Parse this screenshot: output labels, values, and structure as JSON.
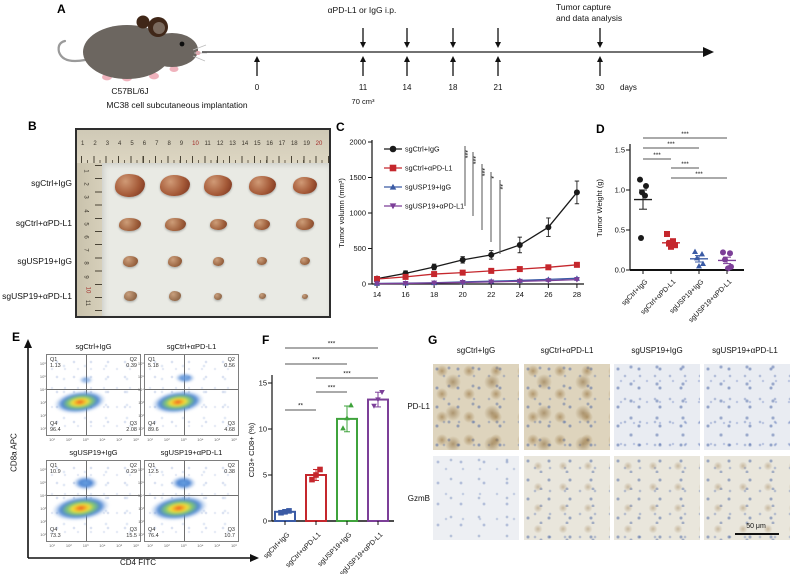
{
  "groups": [
    "sgCtrl+IgG",
    "sgCtrl+αPD-L1",
    "sgUSP19+IgG",
    "sgUSP19+αPD-L1"
  ],
  "colors": {
    "black": "#1a1a1a",
    "red": "#c5272d",
    "blue": "#3b5ba5",
    "purple": "#7c3f98",
    "green": "#3fa33c"
  },
  "panels": {
    "A": {
      "label": "A",
      "strain": "C57BL/6J",
      "implantation": "MC38 cell subcutaneous implantation",
      "treatment": "αPD-L1 or IgG i.p.",
      "capture_line1": "Tumor capture",
      "capture_line2": "and data analysis",
      "timeline_days": [
        "0",
        "11",
        "14",
        "18",
        "21",
        "30"
      ],
      "days_unit": "days",
      "volume_note": "70 cm³"
    },
    "B": {
      "label": "B",
      "row_labels": [
        "sgCtrl+IgG",
        "sgCtrl+αPD-L1",
        "sgUSP19+IgG",
        "sgUSP19+αPD-L1"
      ],
      "ruler_h_numbers": [
        "1",
        "2",
        "3",
        "4",
        "5",
        "6",
        "7",
        "8",
        "9",
        "10",
        "11",
        "12",
        "13",
        "14",
        "15",
        "16",
        "17",
        "18",
        "19",
        "20"
      ],
      "ruler_v_numbers": [
        "1",
        "2",
        "3",
        "4",
        "5",
        "6",
        "7",
        "8",
        "9",
        "10",
        "11"
      ]
    },
    "C": {
      "label": "C"
    },
    "D": {
      "label": "D"
    },
    "E": {
      "label": "E",
      "xlabel": "CD4 FITC",
      "ylabel": "CD8a APC",
      "axis_ticks": [
        "10¹",
        "10²",
        "10³",
        "10⁴",
        "10⁵",
        "10⁶"
      ],
      "quadrant_labels": [
        "Q1",
        "Q2",
        "Q3",
        "Q4"
      ],
      "plots": [
        {
          "title": "sgCtrl+IgG",
          "q1": "1.13",
          "q2": "0.39",
          "q3": "2.08",
          "q4": "96.4"
        },
        {
          "title": "sgCtrl+αPD-L1",
          "q1": "5.18",
          "q2": "0.56",
          "q3": "4.68",
          "q4": "89.6"
        },
        {
          "title": "sgUSP19+IgG",
          "q1": "10.9",
          "q2": "0.29",
          "q3": "15.5",
          "q4": "73.3"
        },
        {
          "title": "sgUSP19+αPD-L1",
          "q1": "12.5",
          "q2": "0.38",
          "q3": "10.7",
          "q4": "76.4"
        }
      ]
    },
    "F": {
      "label": "F"
    },
    "G": {
      "label": "G",
      "column_labels": [
        "sgCtrl+IgG",
        "sgCtrl+αPD-L1",
        "sgUSP19+IgG",
        "sgUSP19+αPD-L1"
      ],
      "row_labels": [
        "PD-L1",
        "GzmB"
      ],
      "scale_bar": "50 μm"
    }
  },
  "chart_data": [
    {
      "id": "C",
      "type": "line",
      "ylabel": "Tumor volumn (mm³)",
      "x": [
        14,
        16,
        18,
        20,
        22,
        24,
        26,
        28
      ],
      "ylim": [
        0,
        2000
      ],
      "yticks": [
        0,
        500,
        1000,
        1500,
        2000
      ],
      "series": [
        {
          "name": "sgCtrl+IgG",
          "color": "#1a1a1a",
          "marker": "circle",
          "values": [
            75,
            150,
            240,
            340,
            410,
            550,
            800,
            1290
          ],
          "errors": [
            25,
            35,
            40,
            45,
            60,
            110,
            130,
            160
          ]
        },
        {
          "name": "sgCtrl+αPD-L1",
          "color": "#c5272d",
          "marker": "square",
          "values": [
            70,
            100,
            140,
            160,
            185,
            210,
            235,
            270
          ],
          "errors": [
            15,
            15,
            20,
            20,
            20,
            25,
            25,
            30
          ]
        },
        {
          "name": "sgUSP19+IgG",
          "color": "#3b5ba5",
          "marker": "triangle-up",
          "values": [
            8,
            12,
            18,
            30,
            40,
            50,
            65,
            80
          ],
          "errors": [
            5,
            5,
            6,
            8,
            8,
            10,
            10,
            12
          ]
        },
        {
          "name": "sgUSP19+αPD-L1",
          "color": "#7c3f98",
          "marker": "triangle-down",
          "values": [
            5,
            8,
            14,
            22,
            30,
            38,
            48,
            62
          ],
          "errors": [
            4,
            5,
            5,
            6,
            8,
            8,
            10,
            10
          ]
        }
      ],
      "significance": [
        "***",
        "***",
        "***",
        "*",
        "**"
      ],
      "legend_position": "upper-left"
    },
    {
      "id": "D",
      "type": "scatter",
      "ylabel": "Tumor Weight (g)",
      "categories": [
        "sgCtrl+IgG",
        "sgCtrl+αPD-L1",
        "sgUSP19+IgG",
        "sgUSP19+αPD-L1"
      ],
      "ylim": [
        0,
        1.5
      ],
      "yticks": [
        "0.0",
        "0.5",
        "1.0",
        "1.5"
      ],
      "series": [
        {
          "name": "sgCtrl+IgG",
          "color": "#1a1a1a",
          "marker": "circle",
          "values": [
            1.13,
            1.05,
            0.97,
            0.93,
            0.4
          ],
          "mean": 0.88,
          "sem": 0.12
        },
        {
          "name": "sgCtrl+αPD-L1",
          "color": "#c5272d",
          "marker": "square",
          "values": [
            0.45,
            0.36,
            0.33,
            0.31,
            0.29
          ],
          "mean": 0.34,
          "sem": 0.03
        },
        {
          "name": "sgUSP19+IgG",
          "color": "#3b5ba5",
          "marker": "triangle-up",
          "values": [
            0.23,
            0.2,
            0.15,
            0.08,
            0.05
          ],
          "mean": 0.14,
          "sem": 0.04
        },
        {
          "name": "sgUSP19+αPD-L1",
          "color": "#7c3f98",
          "marker": "circle",
          "values": [
            0.22,
            0.21,
            0.13,
            0.04,
            0.02
          ],
          "mean": 0.12,
          "sem": 0.04
        }
      ],
      "significance": [
        {
          "from": 0,
          "to": 3,
          "label": "***"
        },
        {
          "from": 0,
          "to": 2,
          "label": "***"
        },
        {
          "from": 0,
          "to": 1,
          "label": "***"
        },
        {
          "from": 1,
          "to": 2,
          "label": "***"
        },
        {
          "from": 1,
          "to": 3,
          "label": "***"
        }
      ]
    },
    {
      "id": "F",
      "type": "bar",
      "ylabel": "CD3+ CD8+ (%)",
      "categories": [
        "sgCtrl+IgG",
        "sgCtrl+αPD-L1",
        "sgUSP19+IgG",
        "sgUSP19+αPD-L1"
      ],
      "ylim": [
        0,
        15
      ],
      "yticks": [
        0,
        5,
        10,
        15
      ],
      "series": [
        {
          "name": "CD3+ CD8+ (%)",
          "values": [
            1.0,
            5.0,
            11.1,
            13.2
          ]
        }
      ],
      "bar_colors": [
        "#3b5ba5",
        "#c5272d",
        "#3fa33c",
        "#7c3f98"
      ],
      "errors": [
        0.15,
        0.6,
        1.4,
        0.8
      ],
      "points": [
        [
          0.9,
          1.0,
          1.1
        ],
        [
          4.5,
          5.0,
          5.6
        ],
        [
          10.1,
          11.2,
          12.6
        ],
        [
          12.5,
          13.2,
          14.0
        ]
      ],
      "markers": [
        "square",
        "square",
        "triangle-up",
        "triangle-down"
      ],
      "significance": [
        {
          "from": 0,
          "to": 3,
          "label": "***"
        },
        {
          "from": 0,
          "to": 2,
          "label": "***"
        },
        {
          "from": 1,
          "to": 3,
          "label": "***"
        },
        {
          "from": 1,
          "to": 2,
          "label": "***"
        },
        {
          "from": 0,
          "to": 1,
          "label": "**"
        }
      ]
    }
  ]
}
